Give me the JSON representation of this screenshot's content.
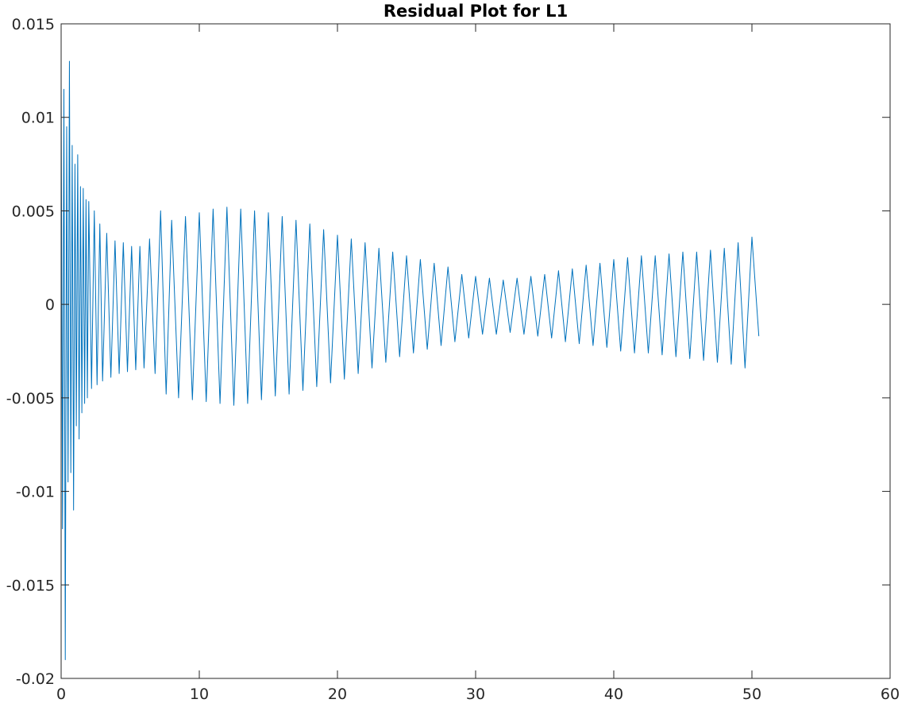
{
  "chart_data": {
    "type": "line",
    "title": "Residual Plot for L1",
    "xlabel": "",
    "ylabel": "",
    "xlim": [
      0,
      60
    ],
    "ylim": [
      -0.02,
      0.015
    ],
    "xticks": [
      0,
      10,
      20,
      30,
      40,
      50,
      60
    ],
    "xtick_labels": [
      "0",
      "10",
      "20",
      "30",
      "40",
      "50",
      "60"
    ],
    "yticks": [
      -0.02,
      -0.015,
      -0.01,
      -0.005,
      0,
      0.005,
      0.01,
      0.015
    ],
    "ytick_labels": [
      "-0.02",
      "-0.015",
      "-0.01",
      "-0.005",
      "0",
      "0.005",
      "0.01",
      "0.015"
    ],
    "grid": false,
    "legend": "none",
    "colors": {
      "series": "#0072BD",
      "axes": "#262626"
    },
    "series": [
      {
        "x": [
          0.0,
          0.1,
          0.2,
          0.3,
          0.4,
          0.5,
          0.6,
          0.7,
          0.8,
          0.9,
          1.0,
          1.1,
          1.2,
          1.3,
          1.4,
          1.5,
          1.6,
          1.7,
          1.8,
          1.9,
          2.0,
          2.2,
          2.4,
          2.6,
          2.8,
          3.0,
          3.3,
          3.6,
          3.9,
          4.2,
          4.5,
          4.8,
          5.1,
          5.4,
          5.7,
          6.0,
          6.4,
          6.8,
          7.2,
          7.6,
          8.0,
          8.5,
          9.0,
          9.5,
          10.0,
          10.5,
          11.0,
          11.5,
          12.0,
          12.5,
          13.0,
          13.5,
          14.0,
          14.5,
          15.0,
          15.5,
          16.0,
          16.5,
          17.0,
          17.5,
          18.0,
          18.5,
          19.0,
          19.5,
          20.0,
          20.5,
          21.0,
          21.5,
          22.0,
          22.5,
          23.0,
          23.5,
          24.0,
          24.5,
          25.0,
          25.5,
          26.0,
          26.5,
          27.0,
          27.5,
          28.0,
          28.5,
          29.0,
          29.5,
          30.0,
          30.5,
          31.0,
          31.5,
          32.0,
          32.5,
          33.0,
          33.5,
          34.0,
          34.5,
          35.0,
          35.5,
          36.0,
          36.5,
          37.0,
          37.5,
          38.0,
          38.5,
          39.0,
          39.5,
          40.0,
          40.5,
          41.0,
          41.5,
          42.0,
          42.5,
          43.0,
          43.5,
          44.0,
          44.5,
          45.0,
          45.5,
          46.0,
          46.5,
          47.0,
          47.5,
          48.0,
          48.5,
          49.0,
          49.5,
          50.0,
          50.5
        ],
        "y": [
          0.012,
          -0.012,
          0.0115,
          -0.019,
          0.0095,
          -0.0095,
          0.013,
          -0.009,
          0.0085,
          -0.011,
          0.0075,
          -0.0065,
          0.008,
          -0.0072,
          0.0063,
          -0.0058,
          0.0062,
          -0.0053,
          0.0056,
          -0.005,
          0.0055,
          -0.0045,
          0.005,
          -0.0043,
          0.0043,
          -0.0041,
          0.0038,
          -0.0039,
          0.0034,
          -0.0037,
          0.0033,
          -0.0036,
          0.0031,
          -0.0035,
          0.0031,
          -0.0034,
          0.0035,
          -0.0037,
          0.005,
          -0.0048,
          0.0045,
          -0.005,
          0.0047,
          -0.0051,
          0.0049,
          -0.0052,
          0.0051,
          -0.0053,
          0.0052,
          -0.0054,
          0.0051,
          -0.0053,
          0.005,
          -0.0051,
          0.0049,
          -0.0049,
          0.0047,
          -0.0048,
          0.0045,
          -0.0046,
          0.0043,
          -0.0044,
          0.004,
          -0.0042,
          0.0037,
          -0.004,
          0.0035,
          -0.0037,
          0.0033,
          -0.0034,
          0.003,
          -0.0031,
          0.0028,
          -0.0028,
          0.0026,
          -0.0026,
          0.0024,
          -0.0024,
          0.0022,
          -0.0022,
          0.002,
          -0.002,
          0.0016,
          -0.0018,
          0.0015,
          -0.0016,
          0.0014,
          -0.0016,
          0.0013,
          -0.0015,
          0.0014,
          -0.0016,
          0.0015,
          -0.0017,
          0.0016,
          -0.0018,
          0.0018,
          -0.002,
          0.0019,
          -0.0021,
          0.0021,
          -0.0022,
          0.0022,
          -0.0023,
          0.0024,
          -0.0025,
          0.0025,
          -0.0026,
          0.0026,
          -0.0026,
          0.0026,
          -0.0027,
          0.0027,
          -0.0028,
          0.0028,
          -0.0029,
          0.0028,
          -0.003,
          0.0029,
          -0.0031,
          0.003,
          -0.0032,
          0.0033,
          -0.0034,
          0.0036,
          -0.0017
        ]
      }
    ]
  }
}
